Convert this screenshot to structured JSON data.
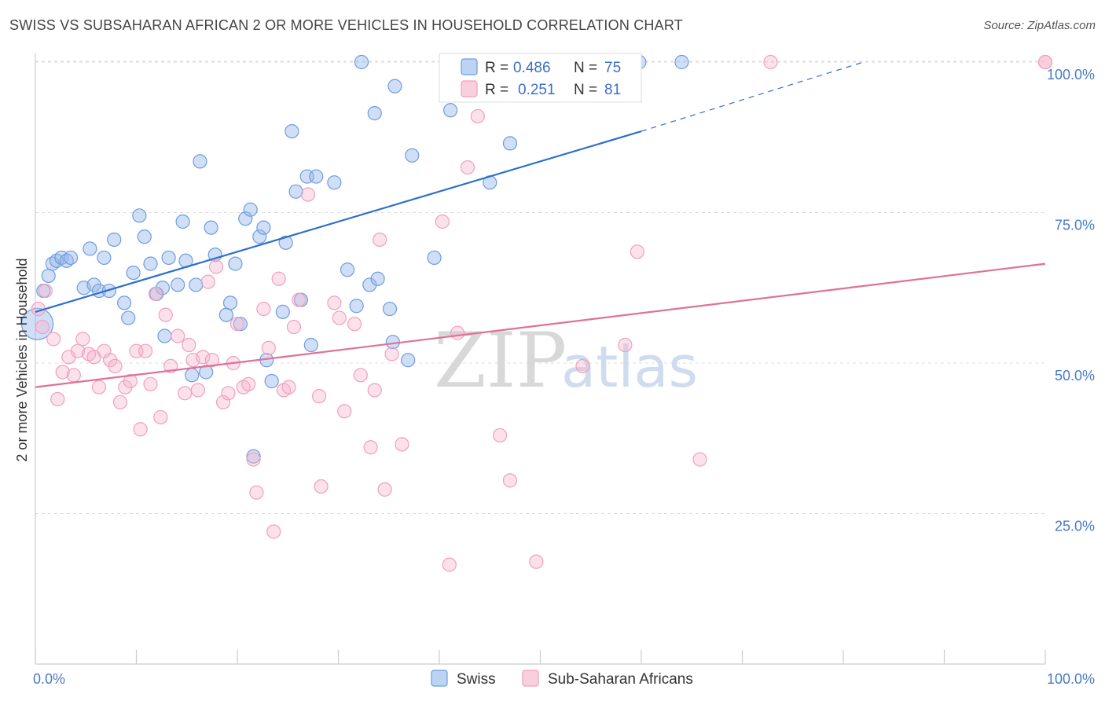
{
  "header": {
    "title": "SWISS VS SUBSAHARAN AFRICAN 2 OR MORE VEHICLES IN HOUSEHOLD CORRELATION CHART",
    "source": "Source: ZipAtlas.com"
  },
  "watermark": {
    "zip": "ZIP",
    "atlas": "atlas"
  },
  "legend_top": [
    {
      "r_label": "R = ",
      "r": "0.486",
      "n_label": "N = ",
      "n": "75",
      "color": "#6d9de0"
    },
    {
      "r_label": "R = ",
      "r": "0.251",
      "n_label": "N = ",
      "n": "81",
      "color": "#f0a0bc"
    }
  ],
  "legend_bottom": [
    {
      "label": "Swiss",
      "color": "#6d9de0"
    },
    {
      "label": "Sub-Saharan Africans",
      "color": "#f0a0bc"
    }
  ],
  "chart_data": {
    "type": "scatter",
    "title": "SWISS VS SUBSAHARAN AFRICAN 2 OR MORE VEHICLES IN HOUSEHOLD CORRELATION CHART",
    "xlabel": "",
    "ylabel": "2 or more Vehicles in Household",
    "xlim": [
      0,
      100
    ],
    "ylim": [
      0,
      101
    ],
    "x_tick_labels": [
      "0.0%",
      "100.0%"
    ],
    "y_ticks": [
      25,
      50,
      75,
      100
    ],
    "y_tick_labels": [
      "25.0%",
      "50.0%",
      "75.0%",
      "100.0%"
    ],
    "grid": true,
    "series": [
      {
        "name": "Swiss",
        "color": "#6d9de0",
        "trend": {
          "x0": 0,
          "y0": 58.5,
          "x1": 60,
          "y1": 88.5,
          "dash_to_x": 82,
          "dash_to_y": 100
        },
        "points": [
          [
            0.2,
            56.5
          ],
          [
            0.8,
            62
          ],
          [
            1.3,
            64.5
          ],
          [
            1.7,
            66.5
          ],
          [
            2.1,
            67
          ],
          [
            2.6,
            67.5
          ],
          [
            3.1,
            67
          ],
          [
            3.5,
            67.5
          ],
          [
            4.8,
            62.5
          ],
          [
            5.4,
            69
          ],
          [
            5.8,
            63
          ],
          [
            6.3,
            62
          ],
          [
            6.8,
            67.5
          ],
          [
            7.3,
            62
          ],
          [
            7.8,
            70.5
          ],
          [
            8.8,
            60
          ],
          [
            9.2,
            57.5
          ],
          [
            9.7,
            65
          ],
          [
            10.3,
            74.5
          ],
          [
            10.8,
            71
          ],
          [
            11.4,
            66.5
          ],
          [
            12.0,
            61.5
          ],
          [
            12.6,
            62.5
          ],
          [
            12.8,
            54.5
          ],
          [
            13.2,
            67.5
          ],
          [
            14.1,
            63
          ],
          [
            14.6,
            73.5
          ],
          [
            14.9,
            67
          ],
          [
            15.5,
            48
          ],
          [
            15.9,
            63
          ],
          [
            16.3,
            83.5
          ],
          [
            16.9,
            48.5
          ],
          [
            17.4,
            72.5
          ],
          [
            17.8,
            68
          ],
          [
            18.9,
            58
          ],
          [
            19.3,
            60
          ],
          [
            19.8,
            66.5
          ],
          [
            20.3,
            56.5
          ],
          [
            20.8,
            74
          ],
          [
            21.3,
            75.5
          ],
          [
            21.6,
            34.5
          ],
          [
            22.2,
            71
          ],
          [
            22.6,
            72.5
          ],
          [
            22.9,
            50.5
          ],
          [
            23.4,
            47
          ],
          [
            24.5,
            58.5
          ],
          [
            24.8,
            70
          ],
          [
            25.4,
            88.5
          ],
          [
            25.8,
            78.5
          ],
          [
            26.3,
            60.5
          ],
          [
            26.9,
            81
          ],
          [
            27.3,
            53
          ],
          [
            27.8,
            81
          ],
          [
            29.6,
            80
          ],
          [
            30.9,
            65.5
          ],
          [
            31.8,
            59.5
          ],
          [
            32.3,
            100
          ],
          [
            33.1,
            63
          ],
          [
            33.6,
            91.5
          ],
          [
            33.9,
            64
          ],
          [
            35.1,
            59
          ],
          [
            35.4,
            53.5
          ],
          [
            35.6,
            96
          ],
          [
            36.9,
            50.5
          ],
          [
            37.3,
            84.5
          ],
          [
            39.5,
            67.5
          ],
          [
            40.8,
            100
          ],
          [
            41.1,
            92
          ],
          [
            43.2,
            100
          ],
          [
            45.0,
            80
          ],
          [
            47.0,
            86.5
          ],
          [
            51.8,
            100
          ],
          [
            55.3,
            100
          ],
          [
            59.8,
            100
          ],
          [
            64.0,
            100
          ]
        ]
      },
      {
        "name": "Sub-Saharan Africans",
        "color": "#f0a0bc",
        "trend": {
          "x0": 0,
          "y0": 46,
          "x1": 100,
          "y1": 66.5
        },
        "points": [
          [
            0.3,
            59
          ],
          [
            0.7,
            56
          ],
          [
            1.0,
            62
          ],
          [
            1.8,
            54
          ],
          [
            2.2,
            44
          ],
          [
            2.7,
            48.5
          ],
          [
            3.3,
            51
          ],
          [
            3.8,
            48
          ],
          [
            4.2,
            52
          ],
          [
            4.7,
            54
          ],
          [
            5.3,
            51.5
          ],
          [
            5.8,
            51
          ],
          [
            6.3,
            46
          ],
          [
            6.8,
            52
          ],
          [
            7.4,
            50.5
          ],
          [
            7.9,
            49.5
          ],
          [
            8.4,
            43.5
          ],
          [
            8.9,
            46
          ],
          [
            9.4,
            47
          ],
          [
            10.0,
            52
          ],
          [
            10.4,
            39
          ],
          [
            10.9,
            52
          ],
          [
            11.4,
            46.5
          ],
          [
            11.9,
            61.5
          ],
          [
            12.4,
            41
          ],
          [
            12.9,
            58
          ],
          [
            13.4,
            49.5
          ],
          [
            14.1,
            54.5
          ],
          [
            14.8,
            45
          ],
          [
            15.2,
            53
          ],
          [
            15.6,
            50.5
          ],
          [
            16.1,
            45.5
          ],
          [
            16.6,
            51
          ],
          [
            17.1,
            63.5
          ],
          [
            17.5,
            50.5
          ],
          [
            17.9,
            66
          ],
          [
            18.6,
            43.5
          ],
          [
            19.1,
            45
          ],
          [
            19.6,
            50
          ],
          [
            20.0,
            56.5
          ],
          [
            20.6,
            46
          ],
          [
            21.1,
            46.5
          ],
          [
            21.6,
            34
          ],
          [
            21.9,
            28.5
          ],
          [
            22.6,
            59
          ],
          [
            23.1,
            52.5
          ],
          [
            23.6,
            22
          ],
          [
            24.1,
            64
          ],
          [
            24.6,
            45.5
          ],
          [
            25.1,
            46
          ],
          [
            25.6,
            56
          ],
          [
            26.1,
            60.5
          ],
          [
            27.0,
            78
          ],
          [
            28.1,
            44.5
          ],
          [
            28.3,
            29.5
          ],
          [
            29.6,
            60
          ],
          [
            30.1,
            57.5
          ],
          [
            30.6,
            42
          ],
          [
            31.6,
            56.5
          ],
          [
            32.2,
            48
          ],
          [
            33.2,
            36
          ],
          [
            33.6,
            45.5
          ],
          [
            34.1,
            70.5
          ],
          [
            34.6,
            29
          ],
          [
            35.3,
            51.5
          ],
          [
            36.3,
            36.5
          ],
          [
            40.3,
            73.5
          ],
          [
            41.0,
            16.5
          ],
          [
            41.8,
            55
          ],
          [
            42.8,
            82.5
          ],
          [
            43.8,
            91
          ],
          [
            46.0,
            38
          ],
          [
            47.0,
            30.5
          ],
          [
            49.6,
            17
          ],
          [
            54.2,
            49.5
          ],
          [
            58.4,
            53
          ],
          [
            59.6,
            68.5
          ],
          [
            65.8,
            34
          ],
          [
            72.8,
            100
          ],
          [
            100.0,
            100
          ],
          [
            100.0,
            100
          ]
        ]
      }
    ]
  }
}
